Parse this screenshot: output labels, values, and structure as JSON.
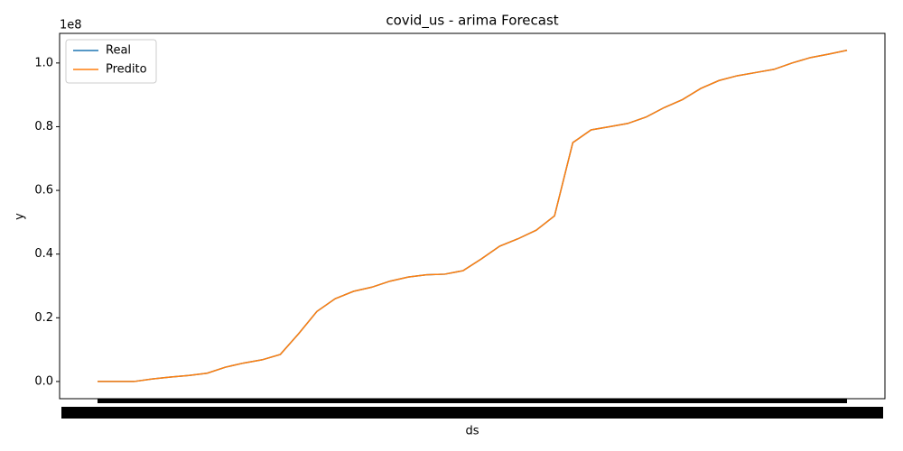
{
  "chart_data": {
    "type": "line",
    "title": "covid_us - arima Forecast",
    "x_label": "ds",
    "y_label": "y",
    "y_offset": "1e8",
    "categories": [
      null,
      null,
      null,
      null,
      null,
      null,
      null,
      null,
      null,
      null,
      null,
      null,
      null,
      null,
      null,
      null,
      null,
      null,
      null,
      null,
      null,
      null,
      null,
      null,
      null,
      null,
      null,
      null,
      null,
      null,
      null,
      null,
      null,
      null,
      null,
      null,
      null,
      null,
      null,
      null,
      null,
      null
    ],
    "series": [
      {
        "name": "Real",
        "color": "#1f77b4",
        "values": [
          0.0,
          0.0,
          0.0,
          0.008,
          0.014,
          0.019,
          0.026,
          0.045,
          0.058,
          0.068,
          0.085,
          0.15,
          0.22,
          0.26,
          0.283,
          0.296,
          0.315,
          0.328,
          0.335,
          0.337,
          0.348,
          0.385,
          0.425,
          0.448,
          0.475,
          0.52,
          0.75,
          0.79,
          0.8,
          0.81,
          0.83,
          0.86,
          0.885,
          0.92,
          0.945,
          0.96,
          0.97,
          0.98,
          1.0,
          1.017,
          1.028,
          1.04
        ]
      },
      {
        "name": "Predito",
        "color": "#ff7f0e",
        "values": [
          0.0,
          0.0,
          0.0,
          0.008,
          0.014,
          0.019,
          0.026,
          0.045,
          0.058,
          0.068,
          0.085,
          0.15,
          0.22,
          0.26,
          0.283,
          0.296,
          0.315,
          0.328,
          0.335,
          0.337,
          0.348,
          0.385,
          0.425,
          0.448,
          0.475,
          0.52,
          0.75,
          0.79,
          0.8,
          0.81,
          0.83,
          0.86,
          0.885,
          0.92,
          0.945,
          0.96,
          0.97,
          0.98,
          1.0,
          1.017,
          1.028,
          1.04
        ]
      }
    ],
    "ylim": [
      -0.054,
      1.093
    ],
    "yticks": [
      {
        "value": 0,
        "label": "0.0"
      },
      0.2,
      0.4,
      0.6,
      0.8,
      {
        "value": 1,
        "label": "1.0"
      }
    ],
    "legend": "upper left",
    "grid": false
  }
}
